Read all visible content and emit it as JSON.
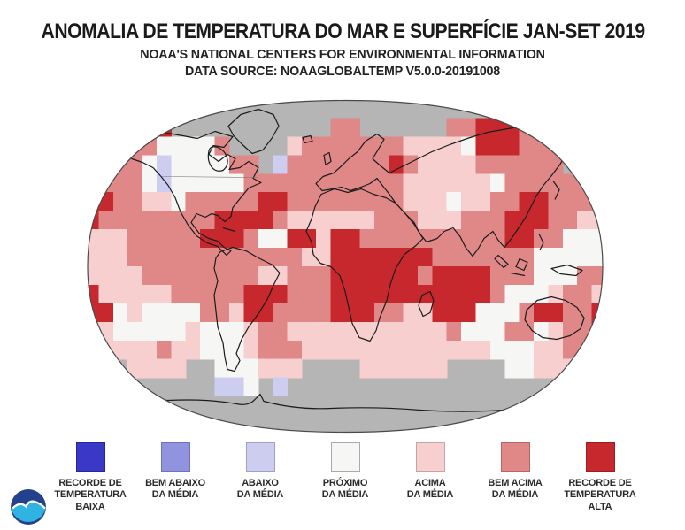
{
  "header": {
    "title": "ANOMALIA DE TEMPERATURA DO MAR E SUPERFÍCIE JAN-SET 2019",
    "subtitle1": "NOAA'S NATIONAL CENTERS FOR ENVIRONMENTAL INFORMATION",
    "subtitle2": "DATA SOURCE: NOAAGLOBALTEMP V5.0.0-20191008"
  },
  "legend": {
    "items": [
      {
        "key": "b",
        "lines": [
          "RECORDE DE",
          "TEMPERATURA",
          "BAIXA"
        ],
        "color": "#3a38c6",
        "border": "#27259d"
      },
      {
        "key": "m",
        "lines": [
          "BEM ABAIXO",
          "DA MÉDIA"
        ],
        "color": "#9193de",
        "border": "#6f71bd"
      },
      {
        "key": "l",
        "lines": [
          "ABAIXO",
          "DA MÉDIA"
        ],
        "color": "#cdcdf0",
        "border": "#9fa0c9"
      },
      {
        "key": "w",
        "lines": [
          "PRÓXIMO",
          "DA MÉDIA"
        ],
        "color": "#f6f6f4",
        "border": "#aaaaaa"
      },
      {
        "key": "p",
        "lines": [
          "ACIMA",
          "DA MÉDIA"
        ],
        "color": "#f7cfcf",
        "border": "#c9a3a3"
      },
      {
        "key": "s",
        "lines": [
          "BEM ACIMA",
          "DA MÉDIA"
        ],
        "color": "#e08787",
        "border": "#b66666"
      },
      {
        "key": "r",
        "lines": [
          "RECORDE DE",
          "TEMPERATURA",
          "ALTA"
        ],
        "color": "#c7282d",
        "border": "#9c1d21"
      }
    ]
  },
  "map": {
    "projection": "robinson-style world grid",
    "no_data_color": "#b5b5b5",
    "outline_color": "#4a4a4a",
    "coastline_color": "#1c1c1c",
    "palette": {
      "b": "#3a38c6",
      "m": "#9193de",
      "l": "#cdcdf0",
      "w": "#f6f6f4",
      "p": "#f7cfcf",
      "s": "#e08787",
      "r": "#c7282d",
      "g": "#b5b5b5"
    },
    "grid_cols": 36,
    "grid_rows": 18,
    "grid": [
      "gggggggggggggggggggggggggggggggggggg",
      "rrggrrgggggggggggssggggggssrrrssssgg",
      "ssssswwwwsggggpsssssssppppwrrrssssss",
      "sssswlwwwwssglsssssssrsppppssssssgss",
      "sssswlwwwwwsssssssssssppppppwsssssss",
      "rrssppwsssssrrsssssssspppwppssrrssss",
      "rssssssssrrrrsppppppssspppsssrrrsspp",
      "pppsssssrrrswwrrprrssssssssssrrsswww",
      "pppsssssssssssspprrrrrrrssssssswwwww",
      "ppppssssssssppsssrrrrrrsrrrrssswwwss",
      "rpppppsssssrrrsssrrrrrrrrrrrswwwpssp",
      "rrwpwwwwssprrssssrrrsspprrrwwwsrrssr",
      "ppwwwwwpwwwpsspppppppppppswwwsswpssr",
      "wppppsppwwwpssspppppppppppppwwwppssr",
      "gggppppggwwwpppggggppppppggggwwpppgr",
      "gggggggggllwglgggggggggggggggggggggg",
      "gggggggggggggggggggggggggggggggggggg",
      "gggggggggggggggggggggggggggggggggggg"
    ]
  },
  "logo": {
    "name": "NOAA",
    "navy": "#24418e",
    "cyan": "#2fb3e3",
    "gull": "#ffffff"
  }
}
